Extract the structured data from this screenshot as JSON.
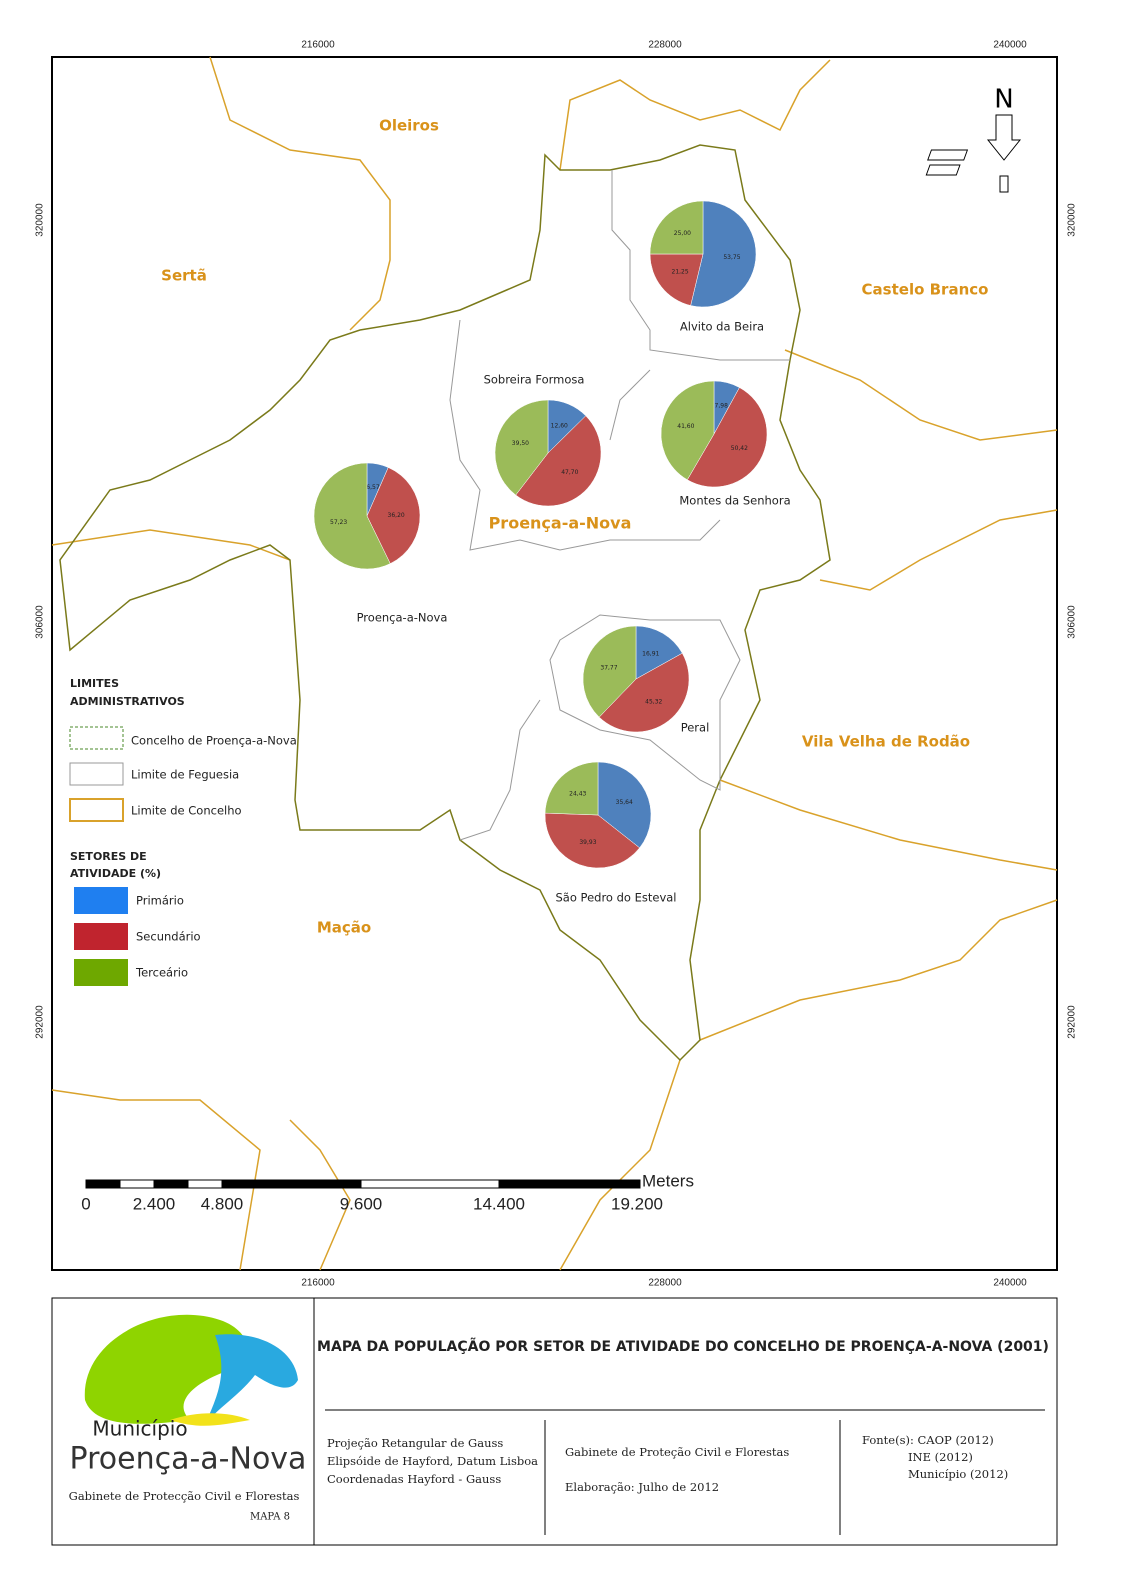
{
  "map": {
    "coord_labels": {
      "x": [
        "216000",
        "228000",
        "240000"
      ],
      "y": [
        "320000",
        "306000",
        "292000"
      ]
    },
    "north_label": "N",
    "regions": [
      "Oleiros",
      "Sertã",
      "Castelo Branco",
      "Vila Velha de Rodão",
      "Mação"
    ],
    "municipality": "Proença-a-Nova",
    "pies": [
      {
        "name": "Alvito da Beira",
        "values": [
          53.75,
          21.25,
          25.0
        ],
        "value_labels": [
          "53,75",
          "21,25",
          "25,00"
        ]
      },
      {
        "name": "Sobreira Formosa",
        "values": [
          12.6,
          47.7,
          39.5
        ],
        "value_labels": [
          "12,60",
          "47,70",
          "39,50"
        ]
      },
      {
        "name": "Montes da Senhora",
        "values": [
          7.98,
          50.42,
          41.6
        ],
        "value_labels": [
          "7,98",
          "50,42",
          "41,60"
        ]
      },
      {
        "name": "Proença-a-Nova",
        "values": [
          6.57,
          36.2,
          57.23
        ],
        "value_labels": [
          "6,57",
          "36,20",
          "57,23"
        ]
      },
      {
        "name": "Peral",
        "values": [
          16.91,
          45.32,
          37.77
        ],
        "value_labels": [
          "16,91",
          "45,32",
          "37,77"
        ]
      },
      {
        "name": "São Pedro do Esteval",
        "values": [
          35.64,
          39.93,
          24.43
        ],
        "value_labels": [
          "35,64",
          "39,93",
          "24,43"
        ]
      }
    ],
    "pie_colors": [
      "#4f81bd",
      "#c0504d",
      "#9bbb59"
    ],
    "legend": {
      "limits_title": [
        "LIMITES",
        "ADMINISTRATIVOS"
      ],
      "limits": [
        "Concelho de Proença-a-Nova",
        "Limite de Feguesia",
        "Limite de Concelho"
      ],
      "sectors_title": [
        "SETORES DE",
        "ATIVIDADE (%)"
      ],
      "sectors": [
        {
          "name": "Primário",
          "color": "#1f7ff0"
        },
        {
          "name": "Secundário",
          "color": "#c0242e"
        },
        {
          "name": "Terceário",
          "color": "#6ea800"
        }
      ]
    },
    "scale": {
      "unit": "Meters",
      "labels": [
        "0",
        "2.400",
        "4.800",
        "9.600",
        "14.400",
        "19.200"
      ]
    }
  },
  "footer": {
    "logo_top": "Município",
    "logo_name": "Proença-a-Nova",
    "office": "Gabinete de Protecção Civil e Florestas",
    "map_id": "MAPA 8",
    "title": "MAPA DA POPULAÇÃO POR SETOR DE ATIVIDADE DO CONCELHO DE PROENÇA-A-NOVA (2001)",
    "projection": [
      "Projeção Retangular de Gauss",
      "Elipsóide de Hayford, Datum Lisboa",
      "Coordenadas Hayford - Gauss"
    ],
    "author": [
      "Gabinete de Proteção Civil e Florestas",
      "Elaboração: Julho de 2012"
    ],
    "sources": [
      "Fonte(s): CAOP (2012)",
      "INE (2012)",
      "Município (2012)"
    ]
  }
}
